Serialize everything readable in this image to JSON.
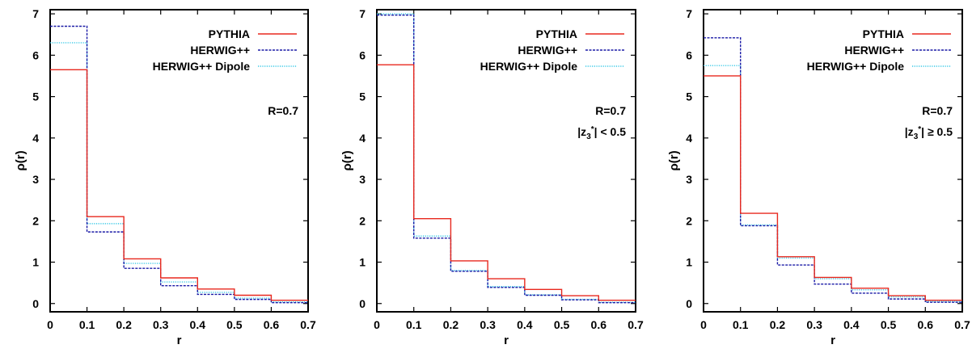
{
  "chart_data": [
    {
      "type": "line",
      "step": true,
      "xlabel": "r",
      "ylabel": "ρ(r)",
      "xlim": [
        0,
        0.7
      ],
      "ylim": [
        -0.2,
        7.1
      ],
      "xticks": [
        "0",
        "0.1",
        "0.2",
        "0.3",
        "0.4",
        "0.5",
        "0.6",
        "0.7"
      ],
      "yticks": [
        "0",
        "1",
        "2",
        "3",
        "4",
        "5",
        "6",
        "7"
      ],
      "bin_edges": [
        0,
        0.1,
        0.2,
        0.3,
        0.4,
        0.5,
        0.6,
        0.7
      ],
      "legend_position": "top-right",
      "annotation": [
        "R=0.7"
      ],
      "series": [
        {
          "name": "PYTHIA",
          "color": "#e8281e",
          "dash": "solid",
          "values": [
            5.65,
            2.1,
            1.08,
            0.62,
            0.35,
            0.2,
            0.08
          ]
        },
        {
          "name": "HERWIG++",
          "color": "#1a1aa6",
          "dash": "dashed",
          "values": [
            6.7,
            1.73,
            0.85,
            0.43,
            0.22,
            0.1,
            0.02
          ]
        },
        {
          "name": "HERWIG++ Dipole",
          "color": "#36c8e6",
          "dash": "dotted",
          "values": [
            6.3,
            1.93,
            0.97,
            0.52,
            0.27,
            0.13,
            0.04
          ]
        }
      ]
    },
    {
      "type": "line",
      "step": true,
      "xlabel": "r",
      "ylabel": "ρ(r)",
      "xlim": [
        0,
        0.7
      ],
      "ylim": [
        -0.2,
        7.1
      ],
      "xticks": [
        "0",
        "0.1",
        "0.2",
        "0.3",
        "0.4",
        "0.5",
        "0.6",
        "0.7"
      ],
      "yticks": [
        "0",
        "1",
        "2",
        "3",
        "4",
        "5",
        "6",
        "7"
      ],
      "bin_edges": [
        0,
        0.1,
        0.2,
        0.3,
        0.4,
        0.5,
        0.6,
        0.7
      ],
      "legend_position": "top-right",
      "annotation": [
        "R=0.7",
        "|z3*| < 0.5"
      ],
      "series": [
        {
          "name": "PYTHIA",
          "color": "#e8281e",
          "dash": "solid",
          "values": [
            5.77,
            2.05,
            1.03,
            0.6,
            0.34,
            0.19,
            0.08
          ]
        },
        {
          "name": "HERWIG++",
          "color": "#1a1aa6",
          "dash": "dashed",
          "values": [
            6.97,
            1.58,
            0.78,
            0.39,
            0.2,
            0.09,
            0.02
          ]
        },
        {
          "name": "HERWIG++ Dipole",
          "color": "#36c8e6",
          "dash": "dotted",
          "values": [
            7.0,
            1.63,
            0.8,
            0.41,
            0.21,
            0.1,
            0.03
          ]
        }
      ]
    },
    {
      "type": "line",
      "step": true,
      "xlabel": "r",
      "ylabel": "ρ(r)",
      "xlim": [
        0,
        0.7
      ],
      "ylim": [
        -0.2,
        7.1
      ],
      "xticks": [
        "0",
        "0.1",
        "0.2",
        "0.3",
        "0.4",
        "0.5",
        "0.6",
        "0.7"
      ],
      "yticks": [
        "0",
        "1",
        "2",
        "3",
        "4",
        "5",
        "6",
        "7"
      ],
      "bin_edges": [
        0,
        0.1,
        0.2,
        0.3,
        0.4,
        0.5,
        0.6,
        0.7
      ],
      "legend_position": "top-right",
      "annotation": [
        "R=0.7",
        "|z3*| ≥ 0.5"
      ],
      "series": [
        {
          "name": "PYTHIA",
          "color": "#e8281e",
          "dash": "solid",
          "values": [
            5.5,
            2.18,
            1.13,
            0.63,
            0.37,
            0.19,
            0.08
          ]
        },
        {
          "name": "HERWIG++",
          "color": "#1a1aa6",
          "dash": "dashed",
          "values": [
            6.42,
            1.88,
            0.93,
            0.47,
            0.25,
            0.11,
            0.03
          ]
        },
        {
          "name": "HERWIG++ Dipole",
          "color": "#36c8e6",
          "dash": "dotted",
          "values": [
            5.75,
            1.9,
            1.1,
            0.6,
            0.33,
            0.16,
            0.05
          ]
        }
      ]
    }
  ]
}
